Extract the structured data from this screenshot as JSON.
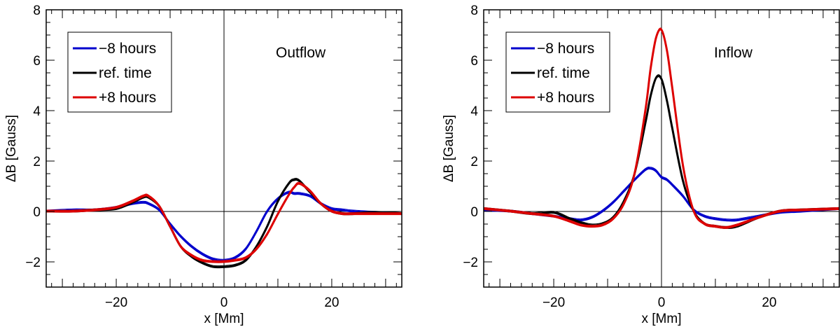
{
  "chart_data": [
    {
      "type": "line",
      "annotation": "Outflow",
      "xlabel": "x [Mm]",
      "ylabel": "ΔB [Gauss]",
      "xlim": [
        -33,
        33
      ],
      "ylim": [
        -3,
        8
      ],
      "xticks": [
        -20,
        0,
        20
      ],
      "xtick_labels": [
        "−20",
        "0",
        "20"
      ],
      "yticks": [
        -2,
        0,
        2,
        4,
        6,
        8
      ],
      "ytick_labels": [
        "−2",
        "0",
        "2",
        "4",
        "6",
        "8"
      ],
      "zero_lines": true,
      "legend_position": "top-left",
      "series": [
        {
          "name": "−8 hours",
          "color": "#0000cc",
          "x": [
            -33,
            -28,
            -24,
            -20,
            -17,
            -15,
            -14,
            -12,
            -10,
            -8,
            -6,
            -4,
            -2,
            0,
            2,
            4,
            6,
            8,
            10,
            12,
            13,
            14,
            16,
            18,
            20,
            22,
            24,
            28,
            33
          ],
          "y": [
            0.0,
            0.05,
            0.05,
            0.15,
            0.3,
            0.35,
            0.3,
            0.05,
            -0.5,
            -1.0,
            -1.4,
            -1.7,
            -1.9,
            -1.95,
            -1.85,
            -1.5,
            -0.8,
            0.0,
            0.5,
            0.75,
            0.7,
            0.7,
            0.6,
            0.3,
            0.1,
            0.05,
            0.0,
            -0.05,
            -0.1
          ]
        },
        {
          "name": "ref. time",
          "color": "#000000",
          "x": [
            -33,
            -28,
            -24,
            -20,
            -17,
            -15,
            -14,
            -12,
            -10,
            -8,
            -6,
            -4,
            -2,
            0,
            2,
            4,
            6,
            8,
            10,
            12,
            13,
            14,
            16,
            18,
            20,
            22,
            24,
            28,
            33
          ],
          "y": [
            0.0,
            0.0,
            0.05,
            0.1,
            0.35,
            0.55,
            0.55,
            0.2,
            -0.6,
            -1.4,
            -1.8,
            -2.05,
            -2.2,
            -2.2,
            -2.15,
            -1.95,
            -1.4,
            -0.6,
            0.4,
            1.1,
            1.25,
            1.2,
            0.75,
            0.3,
            0.0,
            -0.1,
            -0.1,
            -0.05,
            -0.1
          ]
        },
        {
          "name": "+8 hours",
          "color": "#dd0000",
          "x": [
            -33,
            -28,
            -24,
            -20,
            -17,
            -15,
            -14,
            -12,
            -10,
            -8,
            -6,
            -4,
            -2,
            0,
            2,
            4,
            6,
            8,
            10,
            12,
            13,
            14,
            16,
            18,
            20,
            22,
            24,
            28,
            33
          ],
          "y": [
            0.0,
            0.0,
            0.05,
            0.15,
            0.4,
            0.6,
            0.6,
            0.2,
            -0.6,
            -1.4,
            -1.75,
            -1.95,
            -2.0,
            -2.0,
            -1.95,
            -1.85,
            -1.5,
            -0.9,
            -0.1,
            0.65,
            0.95,
            1.1,
            0.8,
            0.3,
            0.0,
            -0.1,
            -0.1,
            -0.1,
            -0.1
          ]
        }
      ]
    },
    {
      "type": "line",
      "annotation": "Inflow",
      "xlabel": "x [Mm]",
      "ylabel": "ΔB [Gauss]",
      "xlim": [
        -33,
        33
      ],
      "ylim": [
        -3,
        8
      ],
      "xticks": [
        -20,
        0,
        20
      ],
      "xtick_labels": [
        "−20",
        "0",
        "20"
      ],
      "yticks": [
        -2,
        0,
        2,
        4,
        6,
        8
      ],
      "ytick_labels": [
        "−2",
        "0",
        "2",
        "4",
        "6",
        "8"
      ],
      "zero_lines": true,
      "legend_position": "top-left",
      "series": [
        {
          "name": "−8 hours",
          "color": "#0000cc",
          "x": [
            -33,
            -28,
            -24,
            -20,
            -17,
            -15,
            -13,
            -11,
            -9,
            -7,
            -5,
            -3,
            -2,
            -1,
            0,
            1,
            2,
            4,
            6,
            8,
            10,
            12,
            14,
            18,
            22,
            26,
            33
          ],
          "y": [
            0.05,
            0.0,
            -0.1,
            -0.2,
            -0.3,
            -0.35,
            -0.25,
            0.0,
            0.35,
            0.8,
            1.25,
            1.65,
            1.7,
            1.6,
            1.35,
            1.25,
            1.05,
            0.6,
            0.05,
            -0.2,
            -0.3,
            -0.35,
            -0.35,
            -0.2,
            -0.05,
            0.0,
            0.1
          ]
        },
        {
          "name": "ref. time",
          "color": "#000000",
          "x": [
            -33,
            -28,
            -24,
            -20,
            -17,
            -15,
            -13,
            -11,
            -9,
            -7,
            -5,
            -3,
            -2,
            -1,
            0,
            1,
            2,
            4,
            6,
            8,
            10,
            12,
            14,
            18,
            22,
            26,
            33
          ],
          "y": [
            0.1,
            0.0,
            -0.1,
            -0.05,
            -0.3,
            -0.45,
            -0.55,
            -0.5,
            -0.25,
            0.4,
            1.5,
            3.5,
            4.6,
            5.3,
            5.25,
            4.4,
            3.3,
            1.2,
            0.0,
            -0.5,
            -0.6,
            -0.65,
            -0.6,
            -0.25,
            0.0,
            0.05,
            0.1
          ]
        },
        {
          "name": "+8 hours",
          "color": "#dd0000",
          "x": [
            -33,
            -28,
            -24,
            -20,
            -17,
            -15,
            -13,
            -11,
            -9,
            -7,
            -5,
            -3,
            -2,
            -1,
            0,
            1,
            2,
            4,
            6,
            8,
            10,
            12,
            14,
            18,
            22,
            26,
            33
          ],
          "y": [
            0.1,
            0.0,
            -0.1,
            -0.2,
            -0.4,
            -0.55,
            -0.6,
            -0.55,
            -0.3,
            0.3,
            1.5,
            4.0,
            5.7,
            6.9,
            7.2,
            6.4,
            4.9,
            1.8,
            0.0,
            -0.5,
            -0.6,
            -0.65,
            -0.55,
            -0.25,
            0.0,
            0.05,
            0.1
          ]
        }
      ]
    }
  ]
}
